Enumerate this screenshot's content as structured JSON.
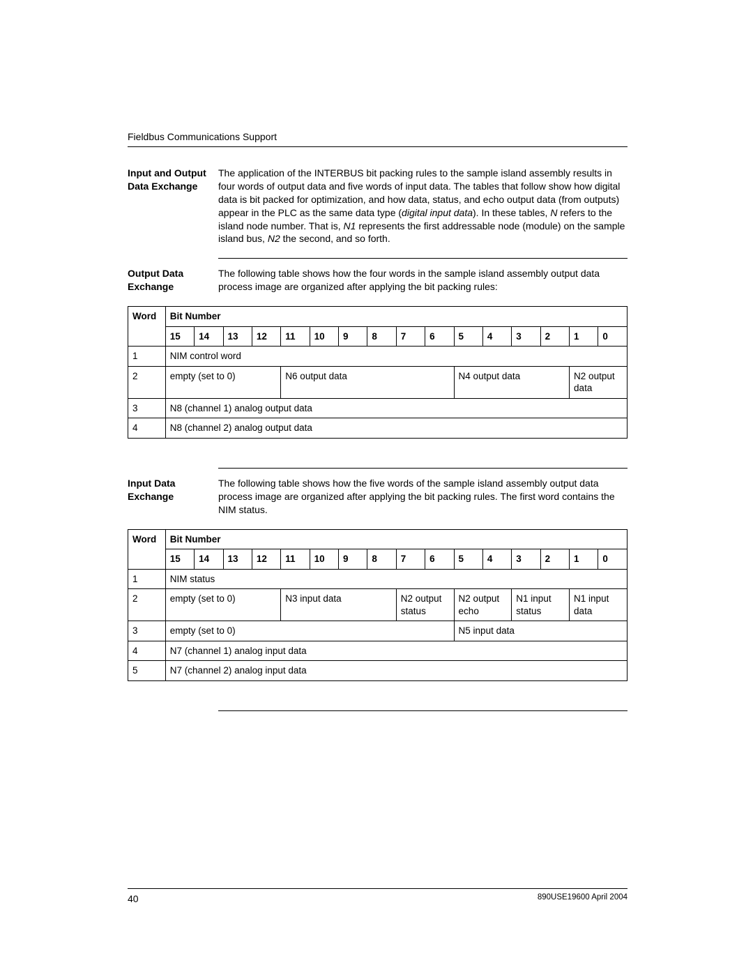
{
  "header": {
    "running_head": "Fieldbus Communications Support"
  },
  "sections": {
    "s1": {
      "title": "Input and Output Data Exchange",
      "body_html": "The application of the INTERBUS bit packing rules to the sample island assembly results in four words of output data and five words of input data. The tables that follow show how digital data is bit packed for optimization, and how data, status, and echo output data (from outputs) appear in the PLC as the same data type (<em>digital input data</em>). In these tables, <em>N</em> refers to the island node number. That is, <em>N1</em> represents the first addressable node (module) on the sample island bus, <em>N2</em> the second, and so forth."
    },
    "s2": {
      "title": "Output Data Exchange",
      "body_html": "The following table shows how the four words in the sample island assembly output data process image are organized after applying the bit packing rules:"
    },
    "s3": {
      "title": "Input Data Exchange",
      "body_html": "The following table shows how the five words of the sample island assembly output data process image are organized after applying the bit packing rules. The first word contains the NIM status."
    }
  },
  "tables": {
    "output": {
      "bit_header": "Bit Number",
      "word_label": "Word",
      "bits": [
        "15",
        "14",
        "13",
        "12",
        "11",
        "10",
        "9",
        "8",
        "7",
        "6",
        "5",
        "4",
        "3",
        "2",
        "1",
        "0"
      ],
      "rows": [
        {
          "word": "1",
          "cells": [
            {
              "text": "NIM control word",
              "span": 16
            }
          ]
        },
        {
          "word": "2",
          "cells": [
            {
              "text": "empty (set to 0)",
              "span": 4
            },
            {
              "text": "N6 output data",
              "span": 6
            },
            {
              "text": "N4 output data",
              "span": 4
            },
            {
              "text": "N2 output data",
              "span": 2
            }
          ]
        },
        {
          "word": "3",
          "cells": [
            {
              "text": "N8 (channel 1) analog output data",
              "span": 16
            }
          ]
        },
        {
          "word": "4",
          "cells": [
            {
              "text": "N8 (channel 2) analog output data",
              "span": 16
            }
          ]
        }
      ]
    },
    "input": {
      "bit_header": "Bit Number",
      "word_label": "Word",
      "bits": [
        "15",
        "14",
        "13",
        "12",
        "11",
        "10",
        "9",
        "8",
        "7",
        "6",
        "5",
        "4",
        "3",
        "2",
        "1",
        "0"
      ],
      "rows": [
        {
          "word": "1",
          "cells": [
            {
              "text": "NIM status",
              "span": 16
            }
          ]
        },
        {
          "word": "2",
          "cells": [
            {
              "text": "empty (set to 0)",
              "span": 4
            },
            {
              "text": "N3 input data",
              "span": 4
            },
            {
              "text": "N2 output status",
              "span": 2
            },
            {
              "text": "N2 output echo",
              "span": 2
            },
            {
              "text": "N1 input status",
              "span": 2
            },
            {
              "text": "N1 input data",
              "span": 2
            }
          ]
        },
        {
          "word": "3",
          "cells": [
            {
              "text": "empty (set to 0)",
              "span": 10
            },
            {
              "text": "N5 input data",
              "span": 6
            }
          ]
        },
        {
          "word": "4",
          "cells": [
            {
              "text": "N7 (channel 1) analog input data",
              "span": 16
            }
          ]
        },
        {
          "word": "5",
          "cells": [
            {
              "text": "N7 (channel 2) analog input data",
              "span": 16
            }
          ]
        }
      ]
    }
  },
  "footer": {
    "page": "40",
    "doc": "890USE19600 April 2004"
  },
  "style": {
    "page_bg": "#ffffff",
    "text_color": "#000000",
    "border_color": "#000000",
    "body_fontsize": 14,
    "table_fontsize": 13.5
  }
}
